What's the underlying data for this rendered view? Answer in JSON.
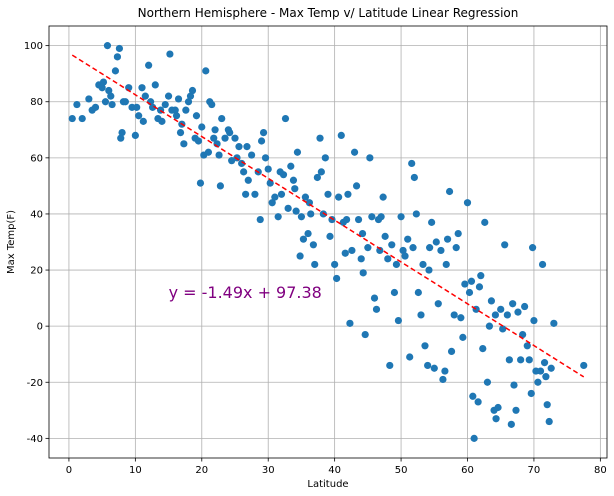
{
  "chart_data": {
    "type": "scatter",
    "title": "Northern Hemisphere - Max Temp v/ Latitude Linear Regression",
    "xlabel": "Latitude",
    "ylabel": "Max Temp(F)",
    "xlim": [
      -3,
      81
    ],
    "ylim": [
      -47,
      107
    ],
    "xticks": [
      0,
      10,
      20,
      30,
      40,
      50,
      60,
      70,
      80
    ],
    "yticks": [
      -40,
      -20,
      0,
      20,
      40,
      60,
      80,
      100
    ],
    "grid": true,
    "point_color": "#1f77b4",
    "regression": {
      "slope": -1.49,
      "intercept": 97.38,
      "x_range": [
        0.5,
        77.5
      ],
      "color": "#ff0000",
      "style": "dashed"
    },
    "annotation": {
      "text": "y = -1.49x + 97.38",
      "x": 15,
      "y": 10,
      "color": "#800080"
    },
    "points": [
      [
        0.5,
        74
      ],
      [
        1.2,
        79
      ],
      [
        2,
        74
      ],
      [
        3,
        81
      ],
      [
        4,
        78
      ],
      [
        4.5,
        86
      ],
      [
        5,
        85
      ],
      [
        5.2,
        87
      ],
      [
        5.5,
        80
      ],
      [
        5.8,
        100
      ],
      [
        6,
        84
      ],
      [
        6.3,
        82
      ],
      [
        6.5,
        79
      ],
      [
        7,
        91
      ],
      [
        7.3,
        96
      ],
      [
        7.6,
        99
      ],
      [
        7.8,
        67
      ],
      [
        8,
        69
      ],
      [
        8.5,
        80
      ],
      [
        9,
        85
      ],
      [
        9.5,
        78
      ],
      [
        10,
        68
      ],
      [
        10.2,
        78
      ],
      [
        10.5,
        75
      ],
      [
        11,
        85
      ],
      [
        11.5,
        82
      ],
      [
        12,
        93
      ],
      [
        12.3,
        80
      ],
      [
        12.6,
        78
      ],
      [
        13,
        86
      ],
      [
        13.4,
        74
      ],
      [
        13.8,
        77
      ],
      [
        14,
        73
      ],
      [
        14.5,
        79
      ],
      [
        15,
        82
      ],
      [
        15.2,
        97
      ],
      [
        15.5,
        77
      ],
      [
        16,
        77
      ],
      [
        16.5,
        81
      ],
      [
        16.8,
        69
      ],
      [
        17,
        72
      ],
      [
        17.3,
        65
      ],
      [
        17.6,
        77
      ],
      [
        18,
        80
      ],
      [
        18.3,
        82
      ],
      [
        18.6,
        84
      ],
      [
        19,
        67
      ],
      [
        19.2,
        75
      ],
      [
        19.5,
        66
      ],
      [
        19.8,
        51
      ],
      [
        20,
        71
      ],
      [
        20.3,
        61
      ],
      [
        20.6,
        91
      ],
      [
        21,
        62
      ],
      [
        21.5,
        79
      ],
      [
        21.8,
        67
      ],
      [
        22,
        70
      ],
      [
        22.3,
        65
      ],
      [
        22.6,
        61
      ],
      [
        22.8,
        50
      ],
      [
        23,
        74
      ],
      [
        23.5,
        67
      ],
      [
        24,
        70
      ],
      [
        24.5,
        59
      ],
      [
        25,
        67
      ],
      [
        25.3,
        60
      ],
      [
        25.6,
        64
      ],
      [
        26,
        58
      ],
      [
        26.3,
        55
      ],
      [
        26.6,
        47
      ],
      [
        27,
        52
      ],
      [
        27.5,
        61
      ],
      [
        28,
        47
      ],
      [
        28.5,
        55
      ],
      [
        28.8,
        38
      ],
      [
        29,
        66
      ],
      [
        29.3,
        69
      ],
      [
        29.6,
        60
      ],
      [
        30,
        56
      ],
      [
        30.3,
        51
      ],
      [
        30.6,
        44
      ],
      [
        31,
        46
      ],
      [
        31.5,
        39
      ],
      [
        32,
        47
      ],
      [
        32.3,
        54
      ],
      [
        32.6,
        74
      ],
      [
        33,
        42
      ],
      [
        33.4,
        57
      ],
      [
        33.8,
        52
      ],
      [
        34,
        49
      ],
      [
        34.4,
        62
      ],
      [
        34.8,
        25
      ],
      [
        35,
        39
      ],
      [
        35.3,
        31
      ],
      [
        35.6,
        46
      ],
      [
        36,
        33
      ],
      [
        36.4,
        40
      ],
      [
        36.8,
        29
      ],
      [
        37,
        22
      ],
      [
        37.4,
        53
      ],
      [
        37.8,
        67
      ],
      [
        38,
        55
      ],
      [
        38.3,
        40
      ],
      [
        38.6,
        60
      ],
      [
        39,
        47
      ],
      [
        39.3,
        32
      ],
      [
        39.6,
        38
      ],
      [
        40,
        22
      ],
      [
        40.3,
        17
      ],
      [
        40.6,
        46
      ],
      [
        41,
        68
      ],
      [
        41.3,
        37
      ],
      [
        41.6,
        26
      ],
      [
        42,
        47
      ],
      [
        42.3,
        1
      ],
      [
        42.6,
        27
      ],
      [
        43,
        62
      ],
      [
        43.3,
        50
      ],
      [
        43.6,
        38
      ],
      [
        44,
        24
      ],
      [
        44.3,
        19
      ],
      [
        44.6,
        -3
      ],
      [
        45,
        28
      ],
      [
        45.3,
        60
      ],
      [
        45.6,
        39
      ],
      [
        46,
        10
      ],
      [
        46.3,
        6
      ],
      [
        46.6,
        38
      ],
      [
        47,
        39
      ],
      [
        47.3,
        46
      ],
      [
        47.6,
        32
      ],
      [
        48,
        24
      ],
      [
        48.3,
        -14
      ],
      [
        48.6,
        29
      ],
      [
        49,
        12
      ],
      [
        49.3,
        22
      ],
      [
        49.6,
        2
      ],
      [
        50,
        39
      ],
      [
        50.3,
        27
      ],
      [
        50.6,
        25
      ],
      [
        51,
        31
      ],
      [
        51.3,
        -11
      ],
      [
        51.6,
        58
      ],
      [
        52,
        53
      ],
      [
        52.3,
        40
      ],
      [
        52.6,
        12
      ],
      [
        53,
        4
      ],
      [
        53.3,
        22
      ],
      [
        53.6,
        -7
      ],
      [
        54,
        -14
      ],
      [
        54.3,
        28
      ],
      [
        54.6,
        37
      ],
      [
        55,
        -15
      ],
      [
        55.3,
        30
      ],
      [
        55.6,
        8
      ],
      [
        56,
        27
      ],
      [
        56.3,
        -19
      ],
      [
        56.6,
        -16
      ],
      [
        57,
        31
      ],
      [
        57.3,
        48
      ],
      [
        57.6,
        -9
      ],
      [
        58,
        4
      ],
      [
        58.3,
        28
      ],
      [
        58.6,
        33
      ],
      [
        59,
        3
      ],
      [
        59.3,
        -4
      ],
      [
        59.6,
        15
      ],
      [
        60,
        44
      ],
      [
        60.3,
        12
      ],
      [
        60.6,
        16
      ],
      [
        61,
        -40
      ],
      [
        61.3,
        6
      ],
      [
        61.6,
        -27
      ],
      [
        62,
        18
      ],
      [
        62.3,
        -8
      ],
      [
        62.6,
        37
      ],
      [
        63,
        -20
      ],
      [
        63.3,
        0
      ],
      [
        63.6,
        9
      ],
      [
        64,
        -30
      ],
      [
        64.3,
        -33
      ],
      [
        64.6,
        -29
      ],
      [
        65,
        6
      ],
      [
        65.3,
        -1
      ],
      [
        65.6,
        29
      ],
      [
        66,
        4
      ],
      [
        66.3,
        -12
      ],
      [
        66.6,
        -35
      ],
      [
        67,
        -21
      ],
      [
        67.3,
        -30
      ],
      [
        67.6,
        5
      ],
      [
        68,
        -12
      ],
      [
        68.3,
        -3
      ],
      [
        68.6,
        7
      ],
      [
        69,
        -7
      ],
      [
        69.3,
        -12
      ],
      [
        69.6,
        -24
      ],
      [
        70,
        2
      ],
      [
        70.3,
        -16
      ],
      [
        70.6,
        -20
      ],
      [
        71,
        -16
      ],
      [
        71.3,
        22
      ],
      [
        71.6,
        -13
      ],
      [
        72,
        -28
      ],
      [
        72.3,
        -34
      ],
      [
        72.6,
        -15
      ],
      [
        73,
        1
      ],
      [
        77.5,
        -14
      ],
      [
        8.2,
        80
      ],
      [
        11.2,
        73
      ],
      [
        16.2,
        75
      ],
      [
        21.2,
        80
      ],
      [
        26.8,
        64
      ],
      [
        31.8,
        55
      ],
      [
        36.2,
        44
      ],
      [
        41.8,
        38
      ],
      [
        46.8,
        27
      ],
      [
        51.8,
        28
      ],
      [
        56.8,
        22
      ],
      [
        61.8,
        14
      ],
      [
        66.8,
        8
      ],
      [
        71.8,
        -18
      ],
      [
        3.5,
        77
      ],
      [
        24.2,
        69
      ],
      [
        34.2,
        41
      ],
      [
        44.2,
        33
      ],
      [
        54.2,
        20
      ],
      [
        64.2,
        4
      ],
      [
        69.8,
        28
      ],
      [
        60.8,
        -25
      ]
    ]
  }
}
